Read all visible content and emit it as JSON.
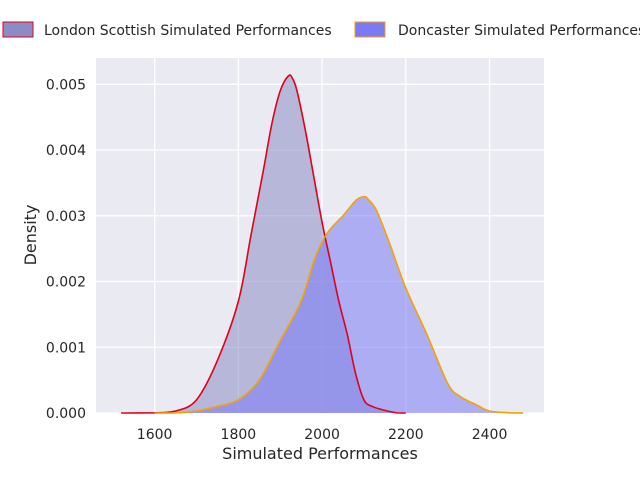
{
  "chart_data": {
    "type": "area",
    "title": "",
    "xlabel": "Simulated Performances",
    "ylabel": "Density",
    "xlim": [
      1460,
      2530
    ],
    "ylim": [
      0,
      0.0054
    ],
    "xticks": [
      1600,
      1800,
      2000,
      2200,
      2400
    ],
    "xtick_labels": [
      "1600",
      "1800",
      "2000",
      "2200",
      "2400"
    ],
    "yticks": [
      0,
      0.001,
      0.002,
      0.003,
      0.004,
      0.005
    ],
    "ytick_labels": [
      "0.000",
      "0.001",
      "0.002",
      "0.003",
      "0.004",
      "0.005"
    ],
    "grid": true,
    "legend_position": "top",
    "series": [
      {
        "name": "London Scottish Simulated Performances",
        "fill_color": "#8c8cc4",
        "line_color": "#e0001a",
        "x": [
          1520,
          1600,
          1650,
          1700,
          1750,
          1800,
          1830,
          1860,
          1880,
          1900,
          1920,
          1930,
          1940,
          1960,
          1980,
          2000,
          2020,
          2040,
          2060,
          2080,
          2100,
          2120,
          2150,
          2180,
          2200
        ],
        "y": [
          0,
          2e-06,
          3e-05,
          0.0002,
          0.0008,
          0.0017,
          0.0027,
          0.0037,
          0.0044,
          0.0049,
          0.00513,
          0.00508,
          0.0049,
          0.0043,
          0.0036,
          0.0029,
          0.0023,
          0.0017,
          0.0012,
          0.0006,
          0.0002,
          0.0001,
          4e-05,
          2e-06,
          0
        ]
      },
      {
        "name": "Doncaster Simulated Performances",
        "fill_color": "#7a7af5",
        "line_color": "#f5a100",
        "x": [
          1600,
          1650,
          1700,
          1750,
          1800,
          1850,
          1900,
          1950,
          1980,
          2000,
          2020,
          2050,
          2080,
          2100,
          2110,
          2130,
          2160,
          2200,
          2250,
          2300,
          2330,
          2370,
          2400,
          2450,
          2480
        ],
        "y": [
          0,
          2e-06,
          3e-05,
          0.0001,
          0.0002,
          0.0005,
          0.0011,
          0.0017,
          0.0023,
          0.0026,
          0.0028,
          0.003,
          0.00323,
          0.00329,
          0.00325,
          0.00308,
          0.0026,
          0.0019,
          0.0012,
          0.00045,
          0.00025,
          0.00012,
          3e-05,
          3e-06,
          0
        ]
      }
    ]
  }
}
